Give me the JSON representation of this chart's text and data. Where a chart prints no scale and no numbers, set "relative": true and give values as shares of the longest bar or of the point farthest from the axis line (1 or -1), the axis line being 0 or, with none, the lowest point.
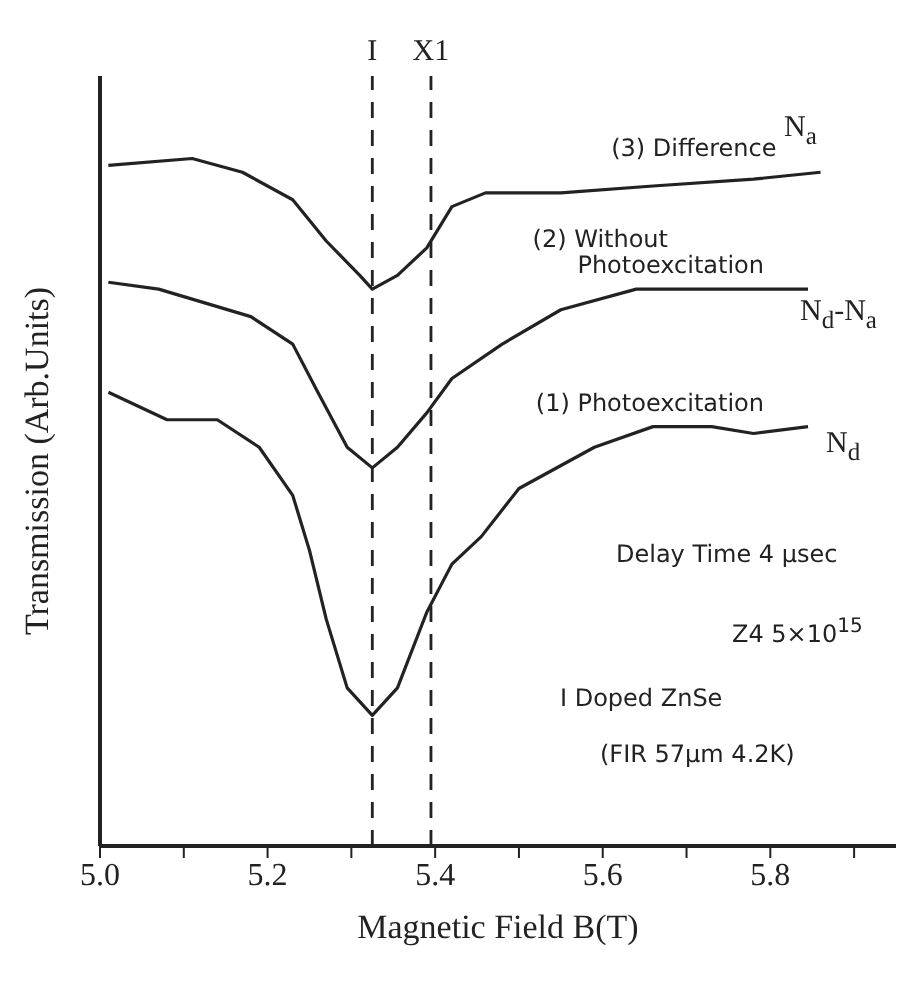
{
  "chart_data": {
    "type": "line",
    "relative": true,
    "xlabel": "Magnetic Field B(T)",
    "ylabel": "Transmission (Arb.Units)",
    "xlim": [
      5.0,
      5.95
    ],
    "xticks": [
      {
        "value": 5.0,
        "label": "5.0"
      },
      {
        "value": 5.1,
        "label": null
      },
      5.2,
      {
        "value": 5.3,
        "label": null
      },
      5.4,
      {
        "value": 5.5,
        "label": null
      },
      5.6,
      {
        "value": 5.7,
        "label": null
      },
      5.8,
      {
        "value": 5.9,
        "label": null
      }
    ],
    "grid": false,
    "marker": "none",
    "line_style": "solid",
    "series": [
      {
        "name": "(3) Difference",
        "color": "#222222",
        "x": [
          5.01,
          5.11,
          5.17,
          5.23,
          5.27,
          5.31,
          5.325,
          5.355,
          5.39,
          5.42,
          5.46,
          5.55,
          5.66,
          5.78,
          5.86
        ],
        "values": [
          0.99,
          1.0,
          0.98,
          0.94,
          0.88,
          0.83,
          0.81,
          0.83,
          0.87,
          0.93,
          0.95,
          0.95,
          0.96,
          0.97,
          0.98
        ]
      },
      {
        "name": "(2) Without Photoexcitation",
        "color": "#222222",
        "x": [
          5.01,
          5.07,
          5.125,
          5.18,
          5.23,
          5.26,
          5.295,
          5.325,
          5.355,
          5.39,
          5.42,
          5.48,
          5.55,
          5.64,
          5.74,
          5.845
        ],
        "values": [
          0.82,
          0.81,
          0.79,
          0.77,
          0.73,
          0.66,
          0.58,
          0.55,
          0.58,
          0.63,
          0.68,
          0.73,
          0.78,
          0.81,
          0.81,
          0.81
        ]
      },
      {
        "name": "(1) Photoexcitation",
        "color": "#222222",
        "x": [
          5.01,
          5.08,
          5.14,
          5.19,
          5.23,
          5.25,
          5.27,
          5.295,
          5.325,
          5.355,
          5.39,
          5.42,
          5.455,
          5.5,
          5.53,
          5.59,
          5.66,
          5.73,
          5.78,
          5.845
        ],
        "values": [
          0.66,
          0.62,
          0.62,
          0.58,
          0.51,
          0.43,
          0.33,
          0.23,
          0.19,
          0.23,
          0.34,
          0.41,
          0.45,
          0.52,
          0.54,
          0.58,
          0.61,
          0.61,
          0.6,
          0.61
        ]
      }
    ],
    "ref_lines": [
      {
        "axis": "x",
        "value": 5.325,
        "label": "I",
        "color": "#222222",
        "line_style": "dashed"
      },
      {
        "axis": "x",
        "value": 5.395,
        "label": "X1",
        "color": "#222222",
        "line_style": "dashed"
      }
    ],
    "annotations": [
      "N$_{a}$",
      "N$_{d}$-N$_{a}$",
      "N$_{d}$",
      "Delay Time 4 µsec",
      "Z4 5×10$^{15}$",
      "I Doped ZnSe",
      "(FIR 57µm 4.2K)"
    ]
  }
}
